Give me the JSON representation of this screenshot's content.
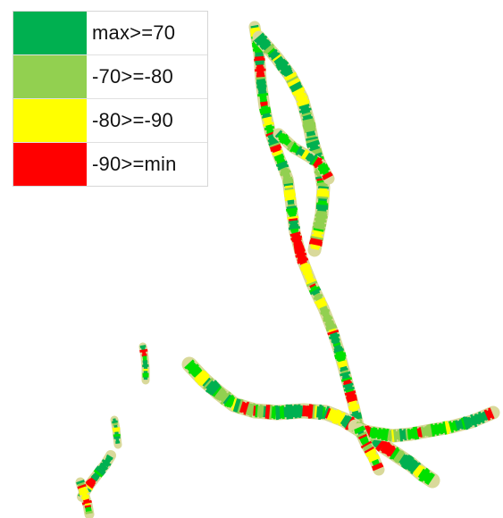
{
  "legend": {
    "items": [
      {
        "label": "max>=70",
        "color": "#00b050"
      },
      {
        "label": "-70>=-80",
        "color": "#92d050"
      },
      {
        "label": "-80>=-90",
        "color": "#ffff00"
      },
      {
        "label": "-90>=min",
        "color": "#ff0000"
      }
    ]
  },
  "palette": {
    "dark_green": "#00b050",
    "light_green": "#92d050",
    "yellow": "#ffff00",
    "red": "#ff0000",
    "shadow": "#d9d99a",
    "bright_green": "#00e000"
  }
}
